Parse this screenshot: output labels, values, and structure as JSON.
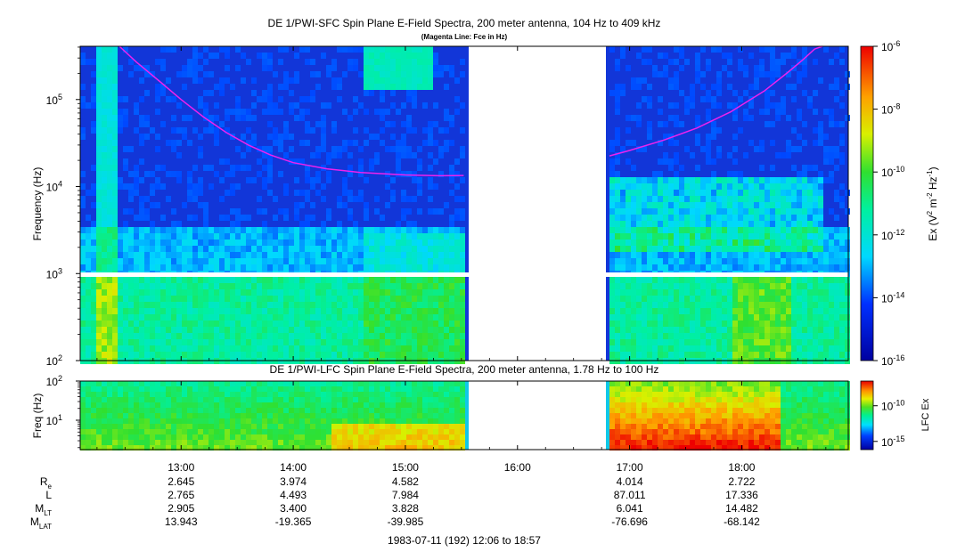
{
  "chart_data": [
    {
      "type": "heatmap",
      "title": "DE 1/PWI-SFC  Spin Plane E-Field Spectra, 200 meter antenna, 104 Hz to 409 kHz",
      "subtitle": "(Magenta Line: Fce in Hz)",
      "ylabel": "Frequency (Hz)",
      "yscale": "log",
      "ylim": [
        100,
        409000
      ],
      "y_ticks": [
        {
          "value": 100,
          "base": "10",
          "exp": "2"
        },
        {
          "value": 1000,
          "base": "10",
          "exp": "3"
        },
        {
          "value": 10000,
          "base": "10",
          "exp": "4"
        },
        {
          "value": 100000,
          "base": "10",
          "exp": "5"
        }
      ],
      "xlim_hours": [
        12.1,
        18.95
      ],
      "data_gap_hours": [
        15.58,
        16.8
      ],
      "frequency_gap_hz": [
        850,
        1050
      ],
      "colorbar": {
        "label_parts": {
          "a": "Ex (V",
          "b": "2",
          "c": " m",
          "d": "-2",
          "e": " Hz",
          "f": "-1",
          "g": ")"
        },
        "range_log10": [
          -16,
          -6
        ],
        "ticks": [
          {
            "base": "10",
            "exp": "-6"
          },
          {
            "base": "10",
            "exp": "-8"
          },
          {
            "base": "10",
            "exp": "-10"
          },
          {
            "base": "10",
            "exp": "-12"
          },
          {
            "base": "10",
            "exp": "-14"
          },
          {
            "base": "10",
            "exp": "-16"
          }
        ]
      },
      "fce_line": {
        "color": "#ee22ee",
        "segment_1": {
          "hours": [
            12.45,
            12.6,
            12.8,
            13.0,
            13.2,
            13.4,
            13.6,
            13.8,
            14.0,
            14.3,
            14.6,
            15.0,
            15.3,
            15.52
          ],
          "hz": [
            409000,
            270000,
            165000,
            100000,
            63000,
            42000,
            30000,
            23000,
            18800,
            16000,
            14500,
            13600,
            13300,
            13400
          ]
        },
        "segment_2": {
          "hours": [
            16.82,
            17.0,
            17.3,
            17.6,
            17.9,
            18.2,
            18.4,
            18.55,
            18.65,
            18.72
          ],
          "hz": [
            22500,
            26000,
            34000,
            47000,
            72000,
            125000,
            200000,
            290000,
            380000,
            409000
          ]
        }
      }
    },
    {
      "type": "heatmap",
      "title": "DE 1/PWI-LFC  Spin Plane E-Field Spectra, 200 meter antenna, 1.78 Hz to 100 Hz",
      "ylabel": "Freq (Hz)",
      "yscale": "log",
      "ylim": [
        1.78,
        100
      ],
      "y_ticks": [
        {
          "value": 100,
          "base": "10",
          "exp": "2"
        },
        {
          "value": 10,
          "base": "10",
          "exp": "1"
        }
      ],
      "xlim_hours": [
        12.1,
        18.95
      ],
      "data_gap_hours": [
        15.58,
        16.8
      ],
      "colorbar": {
        "label": "LFC Ex",
        "ticks": [
          {
            "base": "10",
            "exp": "-10"
          },
          {
            "base": "10",
            "exp": "-15"
          }
        ]
      }
    }
  ],
  "x_axis": {
    "ticks": [
      {
        "hour": 13,
        "label": "13:00"
      },
      {
        "hour": 14,
        "label": "14:00"
      },
      {
        "hour": 15,
        "label": "15:00"
      },
      {
        "hour": 16,
        "label": "16:00"
      },
      {
        "hour": 17,
        "label": "17:00"
      },
      {
        "hour": 18,
        "label": "18:00"
      }
    ]
  },
  "ephemeris": {
    "rows": [
      {
        "name": "R",
        "sub": "e",
        "values": [
          "2.645",
          "3.974",
          "4.582",
          "",
          "4.014",
          "2.722"
        ]
      },
      {
        "name": "L",
        "sub": "",
        "values": [
          "2.765",
          "4.493",
          "7.984",
          "",
          "87.011",
          "17.336"
        ]
      },
      {
        "name": "M",
        "sub": "LT",
        "values": [
          "2.905",
          "3.400",
          "3.828",
          "",
          "6.041",
          "14.482"
        ]
      },
      {
        "name": "M",
        "sub": "LAT",
        "values": [
          "13.943",
          "-19.365",
          "-39.985",
          "",
          "-76.696",
          "-68.142"
        ]
      }
    ]
  },
  "footer": "1983-07-11 (192) 12:06 to 18:57",
  "colors": {
    "background_spectrum": "#1236d8",
    "gap": "#ffffff"
  }
}
